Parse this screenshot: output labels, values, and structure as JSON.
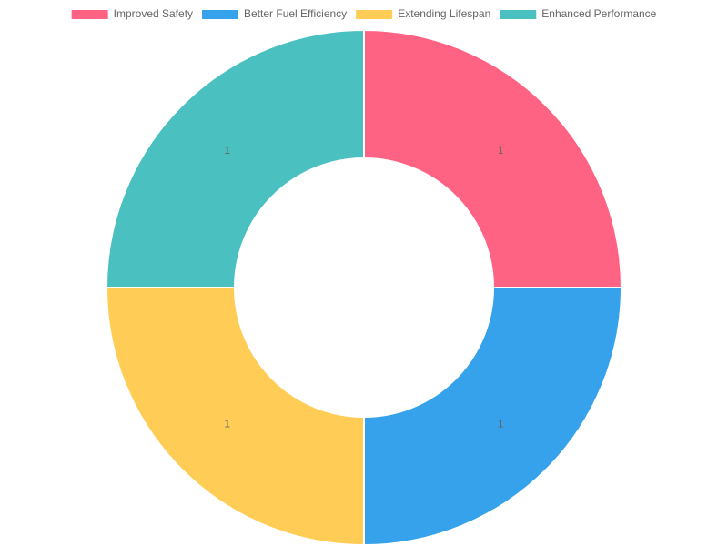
{
  "chart_data": {
    "type": "doughnut",
    "categories": [
      "Improved Safety",
      "Better Fuel Efficiency",
      "Extending Lifespan",
      "Enhanced Performance"
    ],
    "values": [
      1,
      1,
      1,
      1
    ],
    "colors": [
      "#ff6384",
      "#36a2eb",
      "#ffcd56",
      "#4bc0c0"
    ],
    "legend": "top"
  }
}
